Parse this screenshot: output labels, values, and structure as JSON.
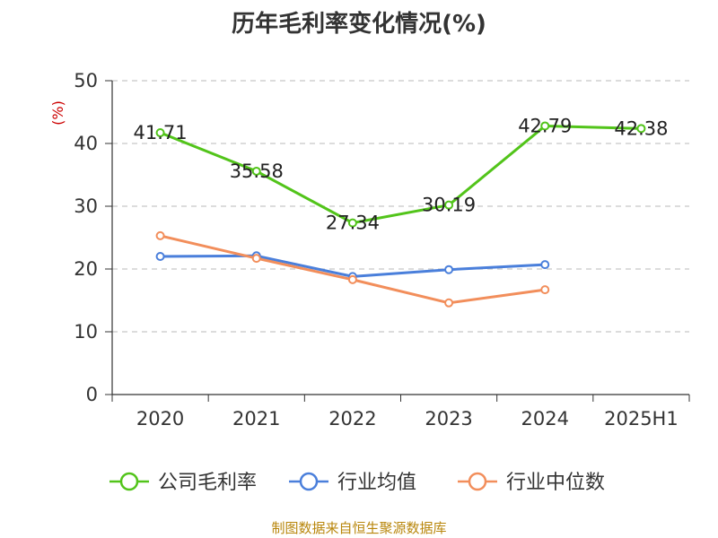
{
  "title": "历年毛利率变化情况(%)",
  "source": "制图数据来自恒生聚源数据库",
  "chart_data": {
    "type": "line",
    "categories": [
      "2020",
      "2021",
      "2022",
      "2023",
      "2024",
      "2025H1"
    ],
    "ylabel": "(%)",
    "ylim": [
      0,
      50
    ],
    "yticks": [
      0,
      10,
      20,
      30,
      40,
      50
    ],
    "grid": true,
    "legend_position": "bottom",
    "series": [
      {
        "name": "公司毛利率",
        "color": "#52c41a",
        "show_labels": true,
        "values": [
          41.71,
          35.58,
          27.34,
          30.19,
          42.79,
          42.38
        ],
        "labels": [
          "41.71",
          "35.58",
          "27.34",
          "30.19",
          "42.79",
          "42.38"
        ]
      },
      {
        "name": "行业均值",
        "color": "#4a7fdb",
        "show_labels": false,
        "values": [
          22.0,
          22.1,
          18.8,
          19.9,
          20.7,
          null
        ]
      },
      {
        "name": "行业中位数",
        "color": "#f28e5b",
        "show_labels": false,
        "values": [
          25.3,
          21.7,
          18.3,
          14.6,
          16.7,
          null
        ]
      }
    ]
  }
}
